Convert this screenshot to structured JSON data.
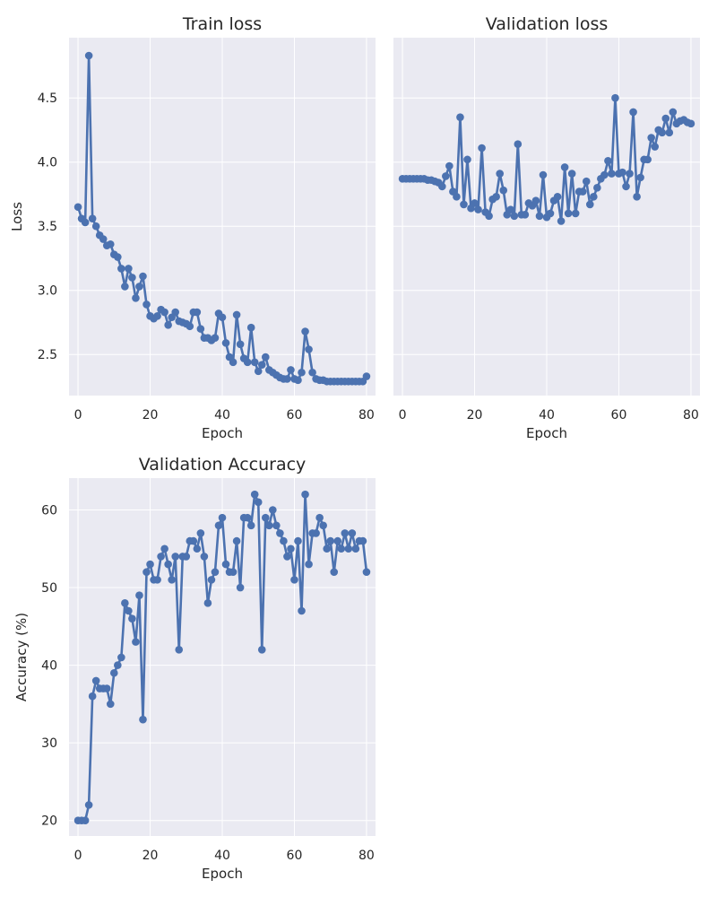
{
  "figure": {
    "width": 800,
    "height": 1000,
    "background": "#ffffff",
    "plot_background": "#eaeaf2",
    "grid_color": "#ffffff",
    "series_color": "#4c72b0"
  },
  "chart_data": [
    {
      "id": "train-loss",
      "type": "line",
      "title": "Train loss",
      "xlabel": "Epoch",
      "ylabel": "Loss",
      "xlim": [
        -2.5,
        82.5
      ],
      "ylim": [
        2.18,
        4.97
      ],
      "xticks": [
        0,
        20,
        40,
        60,
        80
      ],
      "yticks": [
        2.5,
        3.0,
        3.5,
        4.0,
        4.5
      ],
      "ytick_labels": [
        "2.5",
        "3.0",
        "3.5",
        "4.0",
        "4.5"
      ],
      "show_yticks": true,
      "grid": true,
      "marker": "circle",
      "x": [
        0,
        1,
        2,
        3,
        4,
        5,
        6,
        7,
        8,
        9,
        10,
        11,
        12,
        13,
        14,
        15,
        16,
        17,
        18,
        19,
        20,
        21,
        22,
        23,
        24,
        25,
        26,
        27,
        28,
        29,
        30,
        31,
        32,
        33,
        34,
        35,
        36,
        37,
        38,
        39,
        40,
        41,
        42,
        43,
        44,
        45,
        46,
        47,
        48,
        49,
        50,
        51,
        52,
        53,
        54,
        55,
        56,
        57,
        58,
        59,
        60,
        61,
        62,
        63,
        64,
        65,
        66,
        67,
        68,
        69,
        70,
        71,
        72,
        73,
        74,
        75,
        76,
        77,
        78,
        79,
        80
      ],
      "y": [
        3.65,
        3.56,
        3.53,
        4.83,
        3.56,
        3.5,
        3.43,
        3.4,
        3.35,
        3.36,
        3.28,
        3.26,
        3.17,
        3.03,
        3.17,
        3.1,
        2.94,
        3.03,
        3.11,
        2.89,
        2.8,
        2.78,
        2.8,
        2.85,
        2.83,
        2.73,
        2.79,
        2.83,
        2.76,
        2.75,
        2.74,
        2.72,
        2.83,
        2.83,
        2.7,
        2.63,
        2.63,
        2.61,
        2.63,
        2.82,
        2.79,
        2.59,
        2.48,
        2.44,
        2.81,
        2.58,
        2.47,
        2.44,
        2.71,
        2.44,
        2.37,
        2.42,
        2.48,
        2.38,
        2.36,
        2.34,
        2.32,
        2.31,
        2.31,
        2.38,
        2.31,
        2.3,
        2.36,
        2.68,
        2.54,
        2.36,
        2.31,
        2.3,
        2.3,
        2.29,
        2.29,
        2.29,
        2.29,
        2.29,
        2.29,
        2.29,
        2.29,
        2.29,
        2.29,
        2.29,
        2.33
      ]
    },
    {
      "id": "validation-loss",
      "type": "line",
      "title": "Validation loss",
      "xlabel": "Epoch",
      "ylabel": "",
      "xlim": [
        -2.5,
        82.5
      ],
      "ylim": [
        2.18,
        4.97
      ],
      "xticks": [
        0,
        20,
        40,
        60,
        80
      ],
      "yticks": [
        2.5,
        3.0,
        3.5,
        4.0,
        4.5
      ],
      "ytick_labels": [],
      "show_yticks": false,
      "grid": true,
      "marker": "circle",
      "x": [
        0,
        1,
        2,
        3,
        4,
        5,
        6,
        7,
        8,
        9,
        10,
        11,
        12,
        13,
        14,
        15,
        16,
        17,
        18,
        19,
        20,
        21,
        22,
        23,
        24,
        25,
        26,
        27,
        28,
        29,
        30,
        31,
        32,
        33,
        34,
        35,
        36,
        37,
        38,
        39,
        40,
        41,
        42,
        43,
        44,
        45,
        46,
        47,
        48,
        49,
        50,
        51,
        52,
        53,
        54,
        55,
        56,
        57,
        58,
        59,
        60,
        61,
        62,
        63,
        64,
        65,
        66,
        67,
        68,
        69,
        70,
        71,
        72,
        73,
        74,
        75,
        76,
        77,
        78,
        79,
        80
      ],
      "y": [
        3.87,
        3.87,
        3.87,
        3.87,
        3.87,
        3.87,
        3.87,
        3.86,
        3.86,
        3.85,
        3.84,
        3.81,
        3.89,
        3.97,
        3.77,
        3.73,
        4.35,
        3.67,
        4.02,
        3.64,
        3.68,
        3.63,
        4.11,
        3.61,
        3.58,
        3.71,
        3.73,
        3.91,
        3.78,
        3.59,
        3.63,
        3.58,
        4.14,
        3.59,
        3.59,
        3.68,
        3.66,
        3.7,
        3.58,
        3.9,
        3.57,
        3.6,
        3.7,
        3.73,
        3.54,
        3.96,
        3.6,
        3.91,
        3.6,
        3.77,
        3.77,
        3.85,
        3.67,
        3.73,
        3.8,
        3.87,
        3.9,
        4.01,
        3.91,
        4.5,
        3.91,
        3.92,
        3.81,
        3.91,
        4.39,
        3.73,
        3.88,
        4.02,
        4.02,
        4.19,
        4.12,
        4.25,
        4.23,
        4.34,
        4.23,
        4.39,
        4.3,
        4.32,
        4.33,
        4.31,
        4.3
      ]
    },
    {
      "id": "validation-accuracy",
      "type": "line",
      "title": "Validation Accuracy",
      "xlabel": "Epoch",
      "ylabel": "Accuracy (%)",
      "xlim": [
        -2.5,
        82.5
      ],
      "ylim": [
        18.0,
        64.1
      ],
      "xticks": [
        0,
        20,
        40,
        60,
        80
      ],
      "yticks": [
        20,
        30,
        40,
        50,
        60
      ],
      "ytick_labels": [
        "20",
        "30",
        "40",
        "50",
        "60"
      ],
      "show_yticks": true,
      "grid": true,
      "marker": "circle",
      "x": [
        0,
        1,
        2,
        3,
        4,
        5,
        6,
        7,
        8,
        9,
        10,
        11,
        12,
        13,
        14,
        15,
        16,
        17,
        18,
        19,
        20,
        21,
        22,
        23,
        24,
        25,
        26,
        27,
        28,
        29,
        30,
        31,
        32,
        33,
        34,
        35,
        36,
        37,
        38,
        39,
        40,
        41,
        42,
        43,
        44,
        45,
        46,
        47,
        48,
        49,
        50,
        51,
        52,
        53,
        54,
        55,
        56,
        57,
        58,
        59,
        60,
        61,
        62,
        63,
        64,
        65,
        66,
        67,
        68,
        69,
        70,
        71,
        72,
        73,
        74,
        75,
        76,
        77,
        78,
        79,
        80
      ],
      "y": [
        20,
        20,
        20,
        22,
        36,
        38,
        37,
        37,
        37,
        35,
        39,
        40,
        41,
        48,
        47,
        46,
        43,
        49,
        33,
        52,
        53,
        51,
        51,
        54,
        55,
        53,
        51,
        54,
        42,
        54,
        54,
        56,
        56,
        55,
        57,
        54,
        48,
        51,
        52,
        58,
        59,
        53,
        52,
        52,
        56,
        50,
        59,
        59,
        58,
        62,
        61,
        42,
        59,
        58,
        60,
        58,
        57,
        56,
        54,
        55,
        51,
        56,
        47,
        62,
        53,
        57,
        57,
        59,
        58,
        55,
        56,
        52,
        56,
        55,
        57,
        55,
        57,
        55,
        56,
        56,
        52
      ]
    }
  ]
}
